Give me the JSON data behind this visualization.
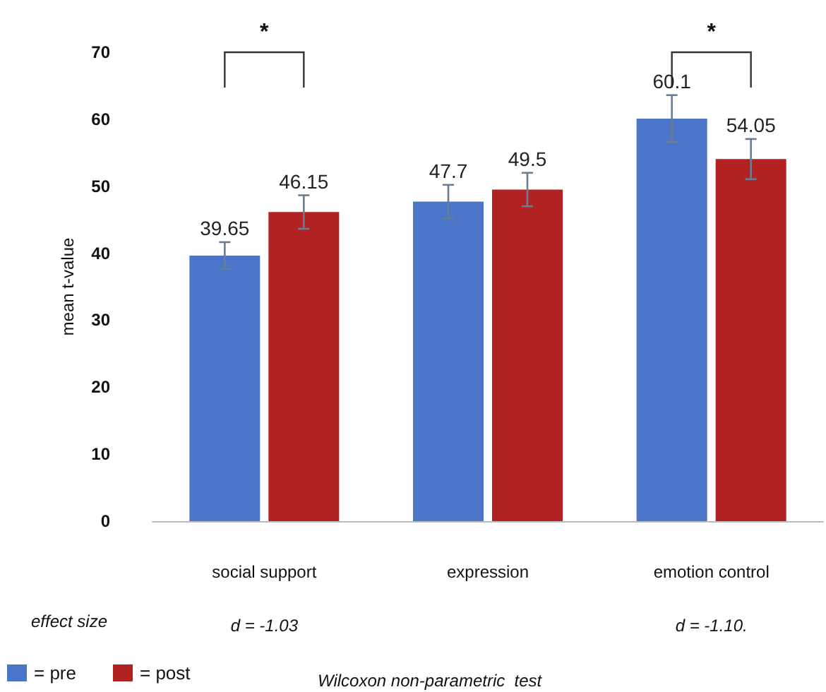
{
  "chart_data": {
    "type": "bar",
    "categories": [
      "social support",
      "expression",
      "emotion control"
    ],
    "ylabel": "mean t-value",
    "ylim": [
      0,
      70
    ],
    "yticks": [
      0,
      10,
      20,
      30,
      40,
      50,
      60,
      70
    ],
    "grid": false,
    "legend": "bottom left",
    "data_labels": true,
    "series": [
      {
        "name": "= pre",
        "color": "#4a75c8",
        "values": [
          39.65,
          47.7,
          60.1
        ],
        "errors": [
          2,
          2.5,
          3.5
        ]
      },
      {
        "name": "= post",
        "color": "#b22222",
        "values": [
          46.15,
          49.5,
          54.05
        ],
        "errors": [
          2.5,
          2.5,
          3
        ]
      }
    ],
    "annotations": [
      "*",
      "*",
      "effect size",
      "d = -1.03",
      "d = -1.10.",
      "Wilcoxon non-parametric  test"
    ]
  }
}
